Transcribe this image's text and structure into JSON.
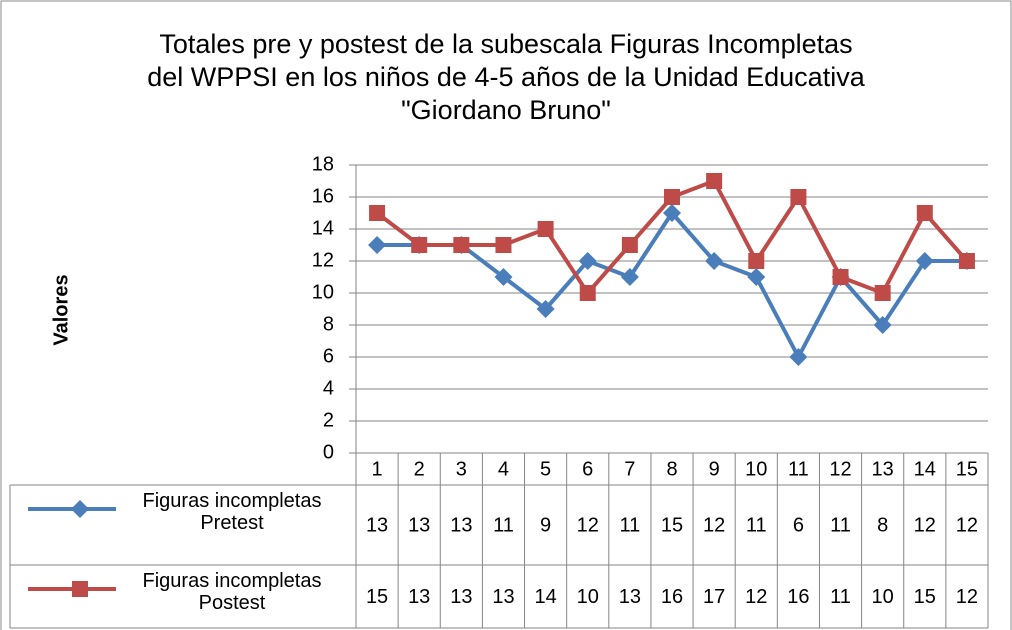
{
  "chart_data": {
    "type": "line",
    "title": "Totales pre y postest de la subescala Figuras Incompletas del WPPSI en los niños de 4-5 años de la Unidad Educativa \"Giordano Bruno\"",
    "y_label": "Valores",
    "categories": [
      1,
      2,
      3,
      4,
      5,
      6,
      7,
      8,
      9,
      10,
      11,
      12,
      13,
      14,
      15
    ],
    "series": [
      {
        "name": "Figuras incompletas Pretest",
        "color": "#4a7ebb",
        "marker": "diamond",
        "values": [
          13,
          13,
          13,
          11,
          9,
          12,
          11,
          15,
          12,
          11,
          6,
          11,
          8,
          12,
          12
        ]
      },
      {
        "name": "Figuras incompletas Postest",
        "color": "#be4b48",
        "marker": "square",
        "values": [
          15,
          13,
          13,
          13,
          14,
          10,
          13,
          16,
          17,
          12,
          16,
          11,
          10,
          15,
          12
        ]
      }
    ],
    "ylim": [
      0,
      18
    ],
    "yticks": [
      0,
      2,
      4,
      6,
      8,
      10,
      12,
      14,
      16,
      18
    ],
    "grid": true,
    "data_table": true
  }
}
